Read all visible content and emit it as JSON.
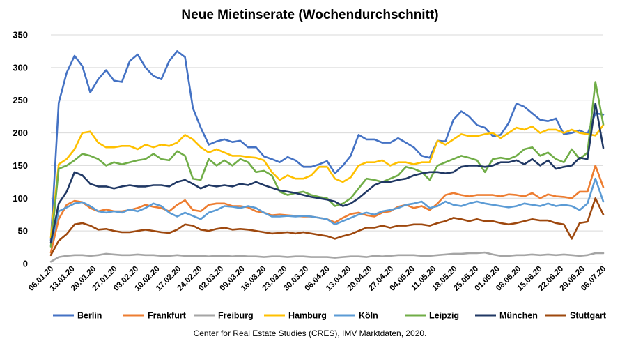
{
  "chart_data": {
    "type": "line",
    "title": "Neue Mietinserate (Wochendurchschnitt)",
    "source": "Center for Real Estate Studies (CRES), IMV Marktdaten, 2020.",
    "ylim": [
      0,
      350
    ],
    "y_ticks": [
      0,
      50,
      100,
      150,
      200,
      250,
      300,
      350
    ],
    "grid": true,
    "legend_position": "bottom",
    "x_tick_labels": [
      "06.01.20",
      "13.01.20",
      "20.01.20",
      "27.01.20",
      "03.02.20",
      "10.02.20",
      "17.02.20",
      "24.02.20",
      "02.03.20",
      "09.03.20",
      "16.03.20",
      "23.03.20",
      "30.03.20",
      "06.04.20",
      "13.04.20",
      "20.04.20",
      "27.04.20",
      "04.05.20",
      "11.05.20",
      "18.05.20",
      "25.05.20",
      "01.06.20",
      "08.06.20",
      "15.06.20",
      "22.06.20",
      "29.06.20",
      "06.07.20"
    ],
    "series": [
      {
        "name": "Berlin",
        "color": "#4472C4",
        "values": [
          35,
          246,
          292,
          318,
          302,
          262,
          282,
          296,
          280,
          278,
          310,
          320,
          300,
          287,
          282,
          310,
          325,
          316,
          238,
          208,
          182,
          187,
          190,
          186,
          188,
          178,
          178,
          164,
          160,
          155,
          163,
          158,
          148,
          148,
          152,
          157,
          138,
          150,
          165,
          197,
          190,
          190,
          185,
          185,
          192,
          185,
          178,
          165,
          162,
          188,
          187,
          220,
          233,
          225,
          212,
          208,
          195,
          197,
          215,
          245,
          240,
          230,
          220,
          218,
          222,
          198,
          200,
          204,
          198,
          230,
          228
        ]
      },
      {
        "name": "Frankfurt",
        "color": "#ED7D31",
        "values": [
          17,
          68,
          90,
          96,
          94,
          85,
          80,
          83,
          80,
          80,
          82,
          85,
          90,
          87,
          85,
          80,
          90,
          97,
          82,
          80,
          90,
          92,
          92,
          88,
          88,
          86,
          80,
          78,
          74,
          75,
          74,
          73,
          72,
          72,
          70,
          68,
          63,
          70,
          76,
          78,
          74,
          72,
          78,
          80,
          87,
          90,
          85,
          88,
          82,
          92,
          105,
          108,
          105,
          103,
          105,
          105,
          105,
          103,
          106,
          105,
          103,
          108,
          100,
          106,
          103,
          102,
          100,
          110,
          110,
          150,
          117
        ]
      },
      {
        "name": "Freiburg",
        "color": "#A5A5A5",
        "values": [
          3,
          10,
          12,
          13,
          13,
          12,
          13,
          15,
          14,
          13,
          13,
          14,
          13,
          13,
          12,
          12,
          13,
          12,
          12,
          12,
          11,
          12,
          12,
          11,
          12,
          11,
          11,
          10,
          11,
          11,
          10,
          11,
          11,
          10,
          10,
          10,
          9,
          10,
          11,
          11,
          10,
          12,
          11,
          12,
          13,
          13,
          13,
          12,
          12,
          13,
          14,
          15,
          15,
          16,
          16,
          17,
          14,
          12,
          12,
          13,
          13,
          14,
          13,
          14,
          13,
          14,
          13,
          12,
          13,
          16,
          16
        ]
      },
      {
        "name": "Hamburg",
        "color": "#FFC000",
        "values": [
          40,
          152,
          160,
          175,
          200,
          202,
          185,
          178,
          178,
          180,
          180,
          175,
          182,
          178,
          182,
          180,
          185,
          197,
          190,
          178,
          170,
          175,
          170,
          165,
          165,
          163,
          162,
          158,
          140,
          128,
          135,
          130,
          130,
          135,
          148,
          148,
          130,
          125,
          132,
          150,
          155,
          155,
          158,
          150,
          155,
          155,
          152,
          155,
          155,
          188,
          182,
          190,
          198,
          195,
          195,
          198,
          200,
          192,
          200,
          208,
          205,
          210,
          200,
          205,
          205,
          200,
          205,
          200,
          198,
          196,
          212
        ]
      },
      {
        "name": "Köln",
        "color": "#5B9BD5",
        "values": [
          28,
          80,
          86,
          92,
          94,
          88,
          80,
          78,
          80,
          78,
          83,
          80,
          85,
          92,
          88,
          78,
          72,
          78,
          73,
          68,
          78,
          82,
          88,
          87,
          85,
          88,
          85,
          78,
          72,
          72,
          73,
          72,
          73,
          72,
          70,
          68,
          60,
          65,
          70,
          75,
          78,
          75,
          80,
          82,
          85,
          90,
          92,
          95,
          85,
          88,
          95,
          90,
          88,
          92,
          95,
          92,
          90,
          88,
          86,
          88,
          92,
          90,
          88,
          92,
          88,
          90,
          88,
          82,
          92,
          130,
          95
        ]
      },
      {
        "name": "Leipzig",
        "color": "#70AD47",
        "values": [
          26,
          145,
          150,
          158,
          168,
          165,
          160,
          150,
          155,
          152,
          155,
          158,
          160,
          168,
          160,
          158,
          172,
          165,
          130,
          128,
          160,
          150,
          158,
          150,
          160,
          155,
          140,
          142,
          135,
          110,
          105,
          108,
          110,
          105,
          102,
          100,
          88,
          92,
          100,
          115,
          130,
          128,
          125,
          130,
          135,
          148,
          145,
          140,
          128,
          150,
          155,
          160,
          165,
          162,
          158,
          140,
          160,
          162,
          160,
          165,
          175,
          178,
          165,
          170,
          160,
          155,
          175,
          160,
          170,
          278,
          213
        ]
      },
      {
        "name": "München",
        "color": "#203864",
        "values": [
          32,
          92,
          110,
          140,
          135,
          122,
          118,
          118,
          115,
          118,
          120,
          118,
          118,
          120,
          120,
          118,
          125,
          128,
          122,
          115,
          120,
          118,
          120,
          118,
          122,
          120,
          125,
          120,
          116,
          112,
          110,
          108,
          105,
          102,
          100,
          98,
          95,
          88,
          92,
          100,
          110,
          120,
          125,
          125,
          128,
          130,
          135,
          138,
          140,
          140,
          138,
          140,
          148,
          150,
          150,
          148,
          150,
          155,
          155,
          158,
          152,
          160,
          150,
          158,
          145,
          148,
          150,
          162,
          160,
          245,
          177
        ]
      },
      {
        "name": "Stuttgart",
        "color": "#9E480E",
        "values": [
          13,
          35,
          45,
          60,
          62,
          58,
          52,
          53,
          50,
          48,
          48,
          50,
          52,
          50,
          48,
          47,
          52,
          60,
          58,
          52,
          50,
          53,
          55,
          52,
          53,
          52,
          50,
          48,
          46,
          47,
          48,
          46,
          48,
          46,
          44,
          42,
          38,
          42,
          45,
          50,
          55,
          55,
          58,
          55,
          58,
          58,
          60,
          60,
          58,
          62,
          65,
          70,
          68,
          65,
          68,
          65,
          65,
          62,
          60,
          62,
          65,
          68,
          66,
          66,
          62,
          60,
          38,
          62,
          64,
          100,
          75
        ]
      }
    ]
  }
}
